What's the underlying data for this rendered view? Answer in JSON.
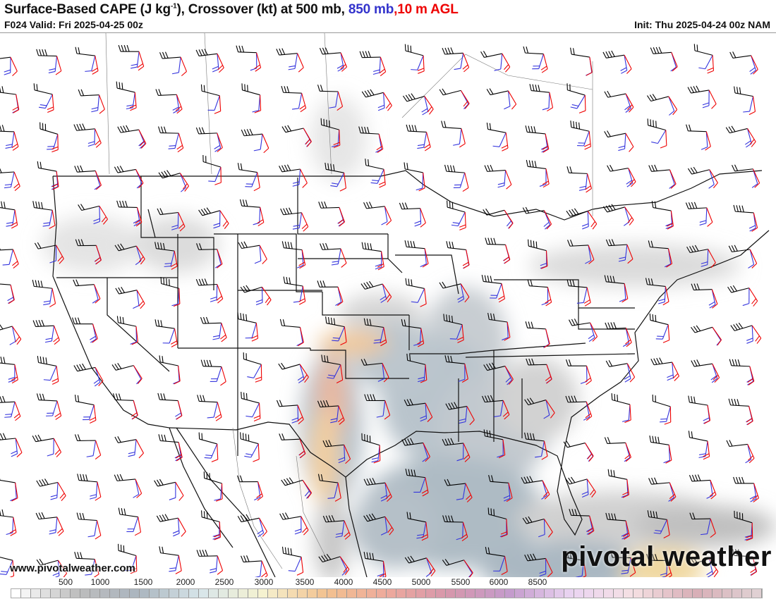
{
  "header": {
    "title_main": "Surface-Based CAPE (J kg",
    "title_sup": "-1",
    "title_mid": "), Crossover (kt) at 500 mb, ",
    "title_850": "850 mb",
    "title_comma": ",",
    "title_10m": "10 m AGL",
    "valid": "F024 Valid: Fri 2025-04-25 00z",
    "init": "Init: Thu 2025-04-24 00z NAM"
  },
  "colors": {
    "barb_500mb": "#000000",
    "barb_850mb": "#3333dd",
    "barb_10m": "#ee0000",
    "title_850": "#3333cc",
    "title_10m": "#ee0000"
  },
  "footer": {
    "website": "www.pivotalweather.com",
    "watermark": "pivotal weather"
  },
  "colorbar": {
    "labels": [
      "500",
      "1000",
      "1500",
      "2000",
      "2500",
      "3000",
      "3500",
      "4000",
      "4500",
      "5000",
      "5500",
      "6000",
      "8500"
    ],
    "stops": [
      "#ffffff",
      "#bdbdbd",
      "#aab5bf",
      "#d8e6ea",
      "#f5f2d0",
      "#f2c290",
      "#eeaa9c",
      "#d697ac",
      "#c49bcc",
      "#ead4f2",
      "#f5e0e3",
      "#d8aeb6",
      "#e0d0d3"
    ]
  }
}
